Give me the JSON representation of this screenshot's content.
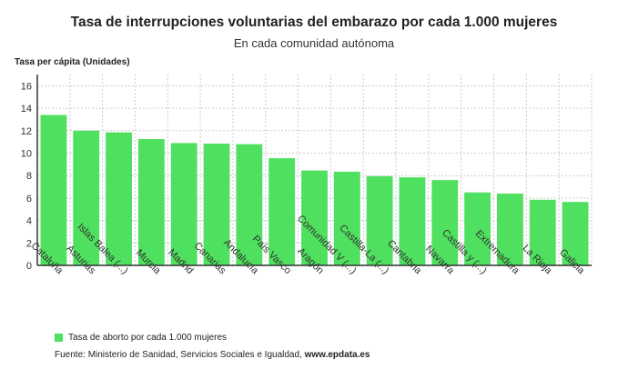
{
  "chart_data": {
    "type": "bar",
    "title": "Tasa de interrupciones voluntarias del embarazo por cada 1.000 mujeres",
    "subtitle": "En cada comunidad autónoma",
    "ylabel": "Tasa per cápita (Unidades)",
    "xlabel": "",
    "ylim": [
      0,
      17
    ],
    "yticks": [
      0,
      2,
      4,
      6,
      8,
      10,
      12,
      14,
      16
    ],
    "grid": true,
    "legend_position": "bottom-left",
    "color": "#4ee05e",
    "categories": [
      "Cataluña",
      "Asturias",
      "Islas Balea (...)",
      "Murcia",
      "Madrid",
      "Canarias",
      "Andalucía",
      "País Vasco",
      "Aragón",
      "Comunidad V (...)",
      "Castilla-La (...)",
      "Cantabria",
      "Navarra",
      "Castilla y (...)",
      "Extremadura",
      "La Rioja",
      "Galicia"
    ],
    "series": [
      {
        "name": "Tasa de aborto por cada 1.000 mujeres",
        "values": [
          13.4,
          12.0,
          11.85,
          11.25,
          10.9,
          10.85,
          10.8,
          9.55,
          8.45,
          8.35,
          7.95,
          7.85,
          7.6,
          6.5,
          6.4,
          5.85,
          5.65
        ]
      }
    ]
  },
  "source": {
    "prefix": "Fuente: Ministerio de Sanidad, Servicios Sociales e Igualdad, ",
    "site": "www.epdata.es"
  }
}
